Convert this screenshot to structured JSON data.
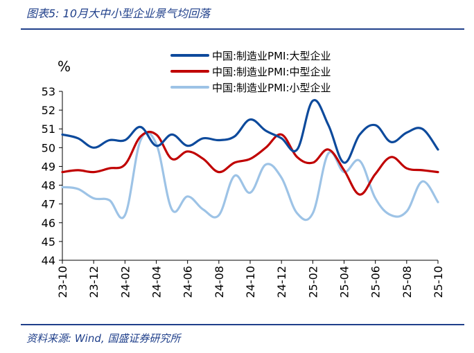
{
  "header": {
    "title": "图表5:  10月大中小型企业景气均回落"
  },
  "footer": {
    "source": "资料来源:  Wind,  国盛证券研究所"
  },
  "chart_data": {
    "type": "line",
    "title": "图表5:  10月大中小型企业景气均回落",
    "ylabel": "%",
    "ylim": [
      44,
      53
    ],
    "yticks": [
      44,
      45,
      46,
      47,
      48,
      49,
      50,
      51,
      52,
      53
    ],
    "x": [
      "23-10",
      "23-11",
      "23-12",
      "24-01",
      "24-02",
      "24-03",
      "24-04",
      "24-05",
      "24-06",
      "24-07",
      "24-08",
      "24-09",
      "24-10",
      "24-11",
      "24-12",
      "25-01",
      "25-02",
      "25-03",
      "25-04",
      "25-05",
      "25-06",
      "25-07",
      "25-08",
      "25-09",
      "25-10"
    ],
    "xtick_labels": [
      "23-10",
      "23-12",
      "24-02",
      "24-04",
      "24-06",
      "24-08",
      "24-10",
      "24-12",
      "25-02",
      "25-04",
      "25-06",
      "25-08",
      "25-10"
    ],
    "legend_position": "top-right",
    "grid": false,
    "series": [
      {
        "name": "中国:制造业PMI:大型企业",
        "color": "#0d4a9c",
        "values": [
          50.7,
          50.5,
          50.0,
          50.4,
          50.4,
          51.1,
          50.1,
          50.7,
          50.1,
          50.5,
          50.4,
          50.6,
          51.5,
          50.9,
          50.5,
          49.9,
          52.5,
          51.2,
          49.2,
          50.7,
          51.2,
          50.3,
          50.8,
          51.0,
          49.9
        ]
      },
      {
        "name": "中国:制造业PMI:中型企业",
        "color": "#c00000",
        "values": [
          48.7,
          48.8,
          48.7,
          48.9,
          49.1,
          50.6,
          50.7,
          49.4,
          49.8,
          49.4,
          48.7,
          49.2,
          49.4,
          50.0,
          50.7,
          49.5,
          49.2,
          49.9,
          48.8,
          47.5,
          48.6,
          49.5,
          48.9,
          48.8,
          48.7
        ]
      },
      {
        "name": "中国:制造业PMI:小型企业",
        "color": "#9dc3e6",
        "values": [
          47.9,
          47.8,
          47.3,
          47.2,
          46.4,
          50.4,
          50.2,
          46.7,
          47.4,
          46.7,
          46.4,
          48.5,
          47.6,
          49.1,
          48.4,
          46.5,
          46.5,
          49.7,
          48.7,
          49.3,
          47.3,
          46.4,
          46.6,
          48.2,
          47.1
        ]
      }
    ]
  }
}
